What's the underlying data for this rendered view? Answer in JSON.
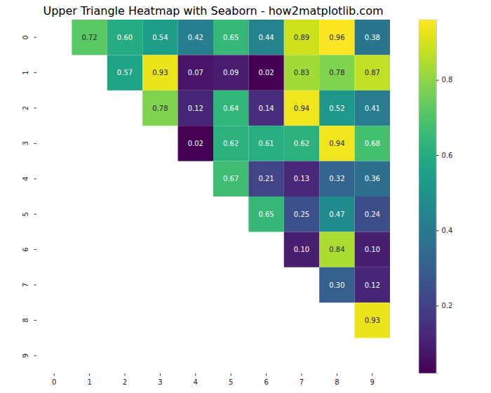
{
  "chart_data": {
    "type": "heatmap",
    "title": "Upper Triangle Heatmap with Seaborn - how2matplotlib.com",
    "x_categories": [
      "0",
      "1",
      "2",
      "3",
      "4",
      "5",
      "6",
      "7",
      "8",
      "9"
    ],
    "y_categories": [
      "0",
      "1",
      "2",
      "3",
      "4",
      "5",
      "6",
      "7",
      "8",
      "9"
    ],
    "values": [
      [
        null,
        0.72,
        0.6,
        0.54,
        0.42,
        0.65,
        0.44,
        0.89,
        0.96,
        0.38
      ],
      [
        null,
        null,
        0.57,
        0.93,
        0.07,
        0.09,
        0.02,
        0.83,
        0.78,
        0.87
      ],
      [
        null,
        null,
        null,
        0.78,
        0.12,
        0.64,
        0.14,
        0.94,
        0.52,
        0.41
      ],
      [
        null,
        null,
        null,
        null,
        0.02,
        0.62,
        0.61,
        0.62,
        0.94,
        0.68
      ],
      [
        null,
        null,
        null,
        null,
        null,
        0.67,
        0.21,
        0.13,
        0.32,
        0.36
      ],
      [
        null,
        null,
        null,
        null,
        null,
        null,
        0.65,
        0.25,
        0.47,
        0.24
      ],
      [
        null,
        null,
        null,
        null,
        null,
        null,
        null,
        0.1,
        0.84,
        0.1
      ],
      [
        null,
        null,
        null,
        null,
        null,
        null,
        null,
        null,
        0.3,
        0.12
      ],
      [
        null,
        null,
        null,
        null,
        null,
        null,
        null,
        null,
        null,
        0.93
      ],
      [
        null,
        null,
        null,
        null,
        null,
        null,
        null,
        null,
        null,
        null
      ]
    ],
    "value_labels": [
      [
        null,
        "0.72",
        "0.60",
        "0.54",
        "0.42",
        "0.65",
        "0.44",
        "0.89",
        "0.96",
        "0.38"
      ],
      [
        null,
        null,
        "0.57",
        "0.93",
        "0.07",
        "0.09",
        "0.02",
        "0.83",
        "0.78",
        "0.87"
      ],
      [
        null,
        null,
        null,
        "0.78",
        "0.12",
        "0.64",
        "0.14",
        "0.94",
        "0.52",
        "0.41"
      ],
      [
        null,
        null,
        null,
        null,
        "0.02",
        "0.62",
        "0.61",
        "0.62",
        "0.94",
        "0.68"
      ],
      [
        null,
        null,
        null,
        null,
        null,
        "0.67",
        "0.21",
        "0.13",
        "0.32",
        "0.36"
      ],
      [
        null,
        null,
        null,
        null,
        null,
        null,
        "0.65",
        "0.25",
        "0.47",
        "0.24"
      ],
      [
        null,
        null,
        null,
        null,
        null,
        null,
        null,
        "0.10",
        "0.84",
        "0.10"
      ],
      [
        null,
        null,
        null,
        null,
        null,
        null,
        null,
        null,
        "0.30",
        "0.12"
      ],
      [
        null,
        null,
        null,
        null,
        null,
        null,
        null,
        null,
        null,
        "0.93"
      ],
      [
        null,
        null,
        null,
        null,
        null,
        null,
        null,
        null,
        null,
        null
      ]
    ],
    "color": "viridis",
    "data_labels": true,
    "colorbar": {
      "range": [
        0.02,
        0.96
      ],
      "ticks": [
        0.2,
        0.4,
        0.6,
        0.8
      ]
    }
  }
}
